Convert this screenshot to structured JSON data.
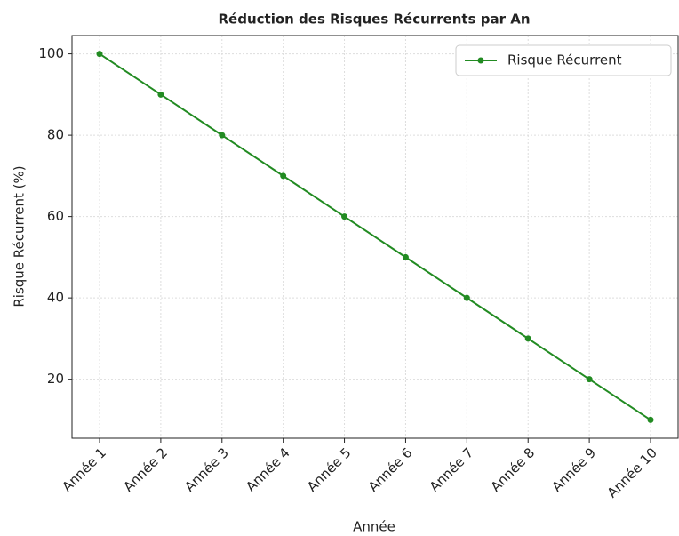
{
  "chart_data": {
    "type": "line",
    "title": "Réduction des Risques Récurrents par An",
    "xlabel": "Année",
    "ylabel": "Risque Récurrent (%)",
    "categories": [
      "Année 1",
      "Année 2",
      "Année 3",
      "Année 4",
      "Année 5",
      "Année 6",
      "Année 7",
      "Année 8",
      "Année 9",
      "Année 10"
    ],
    "series": [
      {
        "name": "Risque Récurrent",
        "color": "#228b22",
        "values": [
          100,
          90,
          80,
          70,
          60,
          50,
          40,
          30,
          20,
          10
        ]
      }
    ],
    "ylim": [
      5.5,
      104.5
    ],
    "yticks": [
      20,
      40,
      60,
      80,
      100
    ],
    "grid": true,
    "legend": "upper right"
  }
}
